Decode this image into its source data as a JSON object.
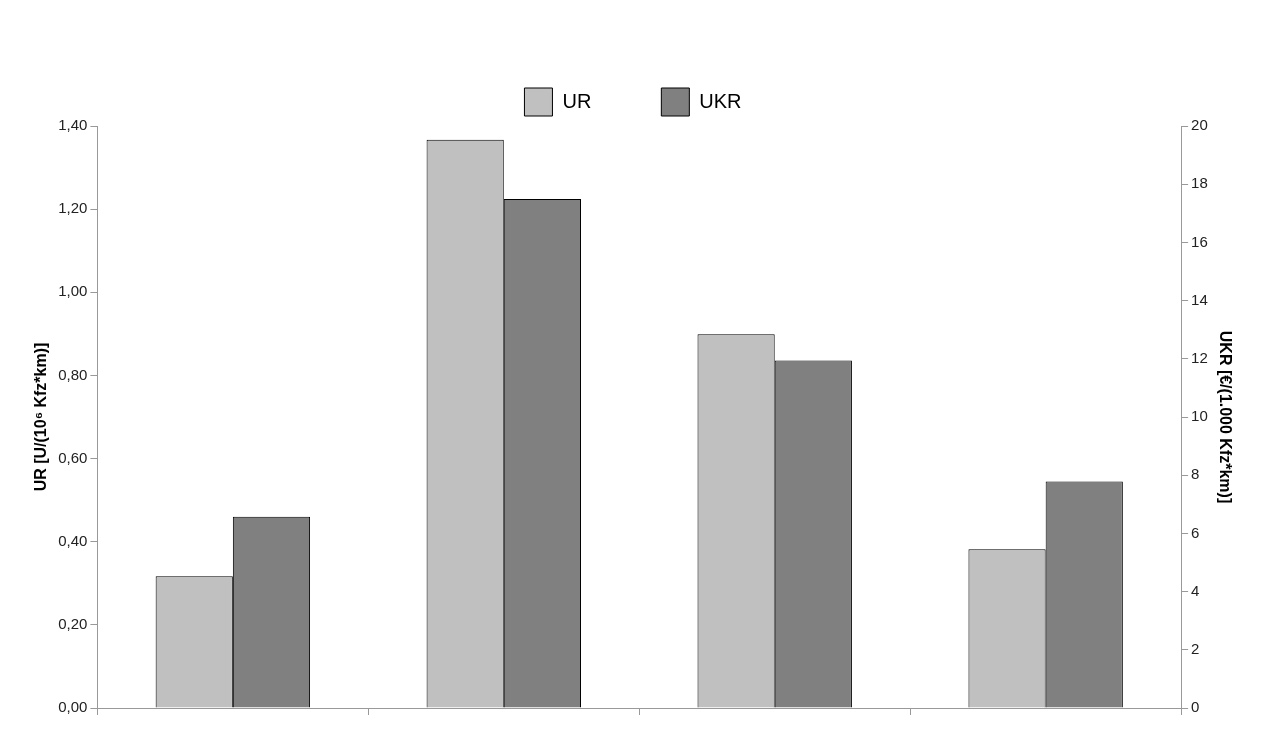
{
  "chart_data": {
    "type": "bar",
    "categories": [
      null,
      null,
      null,
      null
    ],
    "series": [
      {
        "name": "UR",
        "color": "#c0c0c0",
        "values": [
          0.317,
          1.367,
          0.899,
          0.382
        ]
      },
      {
        "name": "UKR",
        "color": "#808080",
        "values": [
          6.57,
          17.49,
          11.94,
          7.78
        ],
        "axis": "y2"
      }
    ],
    "ylabel": "UR [U/(10⁶ Kfz*km)]",
    "y2label": "UKR [€/(1.000 Kfz*km)]",
    "ylim": [
      0,
      1.4
    ],
    "yticks": [
      {
        "value": 0,
        "label": "0,00"
      },
      {
        "value": 0.2,
        "label": "0,20"
      },
      {
        "value": 0.4,
        "label": "0,40"
      },
      {
        "value": 0.6,
        "label": "0,60"
      },
      {
        "value": 0.8,
        "label": "0,80"
      },
      {
        "value": 1.0,
        "label": "1,00"
      },
      {
        "value": 1.2,
        "label": "1,20"
      },
      {
        "value": 1.4,
        "label": "1,40"
      }
    ],
    "y2lim": [
      0,
      20
    ],
    "y2ticks": [
      0,
      2,
      4,
      6,
      8,
      10,
      12,
      14,
      16,
      18,
      20
    ],
    "grid": false,
    "legend": "top",
    "tick_labels": "y"
  }
}
